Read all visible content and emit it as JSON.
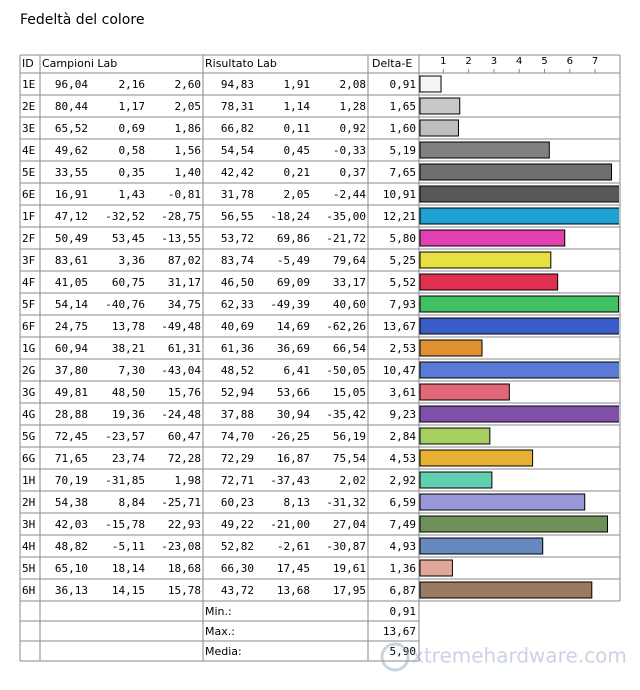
{
  "title": "Fedeltà del colore",
  "table": {
    "headers": [
      "ID",
      "Campioni Lab",
      "Risultato Lab",
      "Delta-E"
    ],
    "rows": [
      [
        "1E",
        "96,04",
        "2,16",
        "2,60",
        "94,83",
        "1,91",
        "2,08"
      ],
      [
        "2E",
        "80,44",
        "1,17",
        "2,05",
        "78,31",
        "1,14",
        "1,28"
      ],
      [
        "3E",
        "65,52",
        "0,69",
        "1,86",
        "66,82",
        "0,11",
        "0,92"
      ],
      [
        "4E",
        "49,62",
        "0,58",
        "1,56",
        "54,54",
        "0,45",
        "-0,33"
      ],
      [
        "5E",
        "33,55",
        "0,35",
        "1,40",
        "42,42",
        "0,21",
        "0,37"
      ],
      [
        "6E",
        "16,91",
        "1,43",
        "-0,81",
        "31,78",
        "2,05",
        "-2,44"
      ],
      [
        "1F",
        "47,12",
        "-32,52",
        "-28,75",
        "56,55",
        "-18,24",
        "-35,00"
      ],
      [
        "2F",
        "50,49",
        "53,45",
        "-13,55",
        "53,72",
        "69,86",
        "-21,72"
      ],
      [
        "3F",
        "83,61",
        "3,36",
        "87,02",
        "83,74",
        "-5,49",
        "79,64"
      ],
      [
        "4F",
        "41,05",
        "60,75",
        "31,17",
        "46,50",
        "69,09",
        "33,17"
      ],
      [
        "5F",
        "54,14",
        "-40,76",
        "34,75",
        "62,33",
        "-49,39",
        "40,60"
      ],
      [
        "6F",
        "24,75",
        "13,78",
        "-49,48",
        "40,69",
        "14,69",
        "-62,26"
      ],
      [
        "1G",
        "60,94",
        "38,21",
        "61,31",
        "61,36",
        "36,69",
        "66,54"
      ],
      [
        "2G",
        "37,80",
        "7,30",
        "-43,04",
        "48,52",
        "6,41",
        "-50,05"
      ],
      [
        "3G",
        "49,81",
        "48,50",
        "15,76",
        "52,94",
        "53,66",
        "15,05"
      ],
      [
        "4G",
        "28,88",
        "19,36",
        "-24,48",
        "37,88",
        "30,94",
        "-35,42"
      ],
      [
        "5G",
        "72,45",
        "-23,57",
        "60,47",
        "74,70",
        "-26,25",
        "56,19"
      ],
      [
        "6G",
        "71,65",
        "23,74",
        "72,28",
        "72,29",
        "16,87",
        "75,54"
      ],
      [
        "1H",
        "70,19",
        "-31,85",
        "1,98",
        "72,71",
        "-37,43",
        "2,02"
      ],
      [
        "2H",
        "54,38",
        "8,84",
        "-25,71",
        "60,23",
        "8,13",
        "-31,32"
      ],
      [
        "3H",
        "42,03",
        "-15,78",
        "22,93",
        "49,22",
        "-21,00",
        "27,04"
      ],
      [
        "4H",
        "48,82",
        "-5,11",
        "-23,08",
        "52,82",
        "-2,61",
        "-30,87"
      ],
      [
        "5H",
        "65,10",
        "18,14",
        "18,68",
        "66,30",
        "17,45",
        "19,61"
      ],
      [
        "6H",
        "36,13",
        "14,15",
        "15,78",
        "43,72",
        "13,68",
        "17,95"
      ]
    ],
    "summary": [
      {
        "label": "Min.:",
        "value": "0,91"
      },
      {
        "label": "Max.:",
        "value": "13,67"
      },
      {
        "label": "Media:",
        "value": "5,90"
      }
    ]
  },
  "chart_data": {
    "type": "bar",
    "orientation": "horizontal",
    "values": [
      0.91,
      1.65,
      1.6,
      5.19,
      7.65,
      10.91,
      12.21,
      5.8,
      5.25,
      5.52,
      7.93,
      13.67,
      2.53,
      10.47,
      3.61,
      9.23,
      2.84,
      4.53,
      2.92,
      6.59,
      7.49,
      4.93,
      1.36,
      6.87
    ],
    "value_labels": [
      "0,91",
      "1,65",
      "1,60",
      "5,19",
      "7,65",
      "10,91",
      "12,21",
      "5,80",
      "5,25",
      "5,52",
      "7,93",
      "13,67",
      "2,53",
      "10,47",
      "3,61",
      "9,23",
      "2,84",
      "4,53",
      "2,92",
      "6,59",
      "7,49",
      "4,93",
      "1,36",
      "6,87"
    ],
    "colors": [
      "#f4f4f4",
      "#c8c8c8",
      "#bebebe",
      "#808080",
      "#6e6e6e",
      "#585858",
      "#1ea0d2",
      "#e040b0",
      "#e8e040",
      "#e03050",
      "#40c060",
      "#3a5cc8",
      "#e09030",
      "#5a7ad8",
      "#e06878",
      "#8050a8",
      "#a8d060",
      "#e8b030",
      "#60d0b0",
      "#9898d8",
      "#70905a",
      "#6888c0",
      "#e0a898",
      "#9a7a60"
    ],
    "xlim": [
      0,
      8
    ],
    "xticks": [
      1,
      2,
      3,
      4,
      5,
      6,
      7
    ]
  },
  "watermark": "xtremehardware.com"
}
